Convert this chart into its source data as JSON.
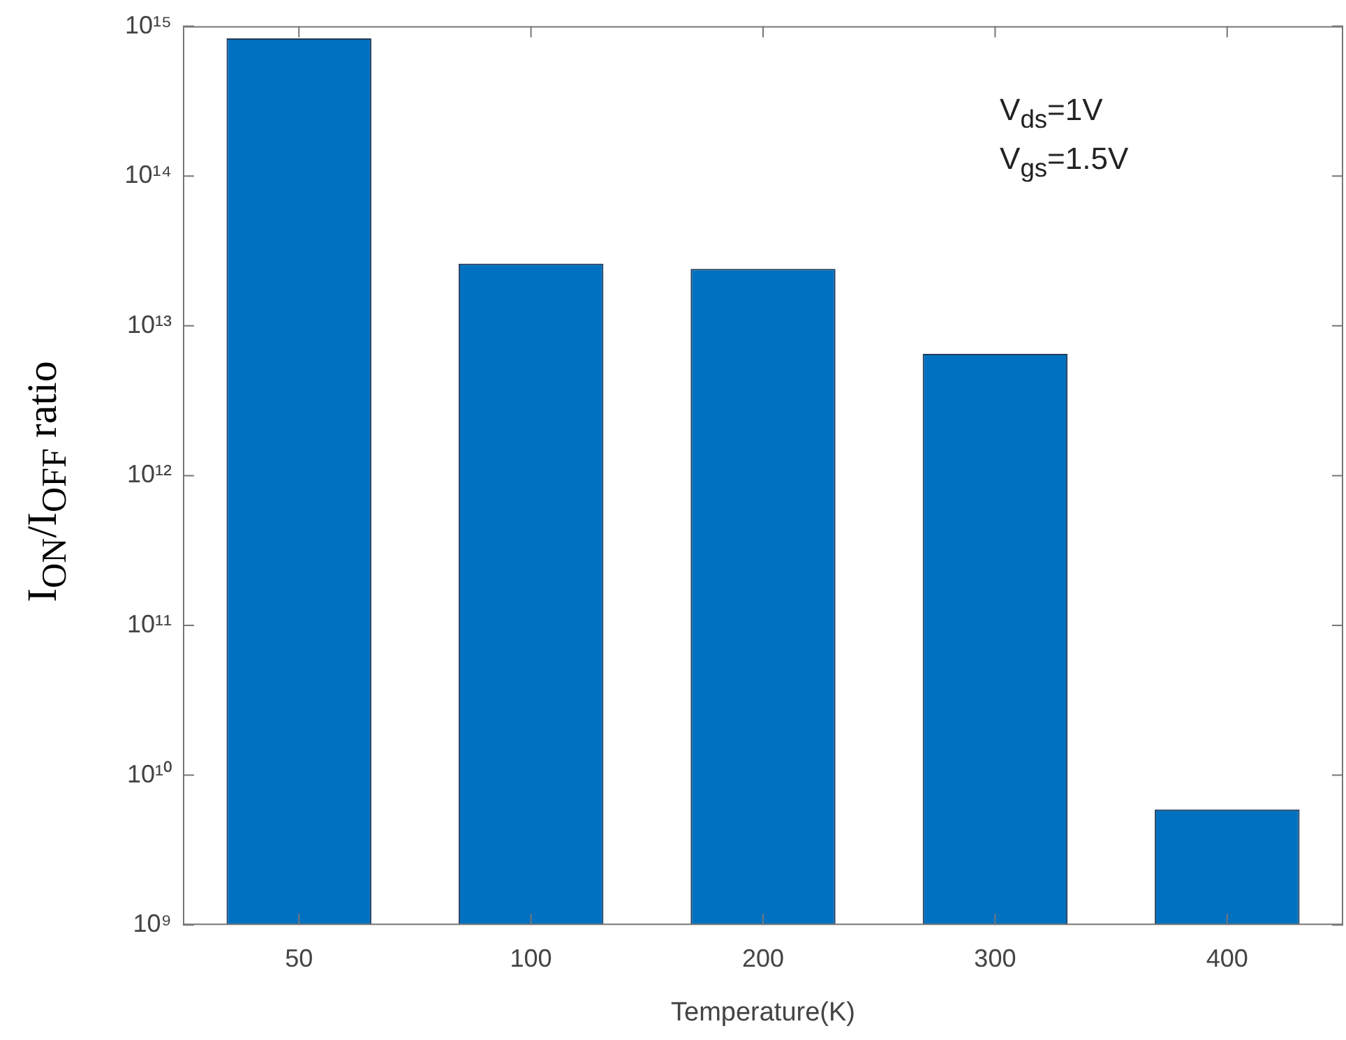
{
  "chart_data": {
    "type": "bar",
    "xlabel": "Temperature(K)",
    "ylabel": "I$_{ON}$/I$_{OFF}$ ratio",
    "categories": [
      "50",
      "100",
      "200",
      "300",
      "400"
    ],
    "values": [
      830000000000000.0,
      26000000000000.0,
      24000000000000.0,
      6500000000000.0,
      5900000000.0
    ],
    "color": "#0070c0",
    "log": true,
    "ylim": [
      1000000000.0,
      1000000000000000.0
    ],
    "yticks": [
      {
        "value": 1000000000.0,
        "label": "10⁹"
      },
      {
        "value": 10000000000.0,
        "label": "10¹⁰"
      },
      {
        "value": 100000000000.0,
        "label": "10¹¹"
      },
      {
        "value": 1000000000000.0,
        "label": "10¹²"
      },
      {
        "value": 10000000000000.0,
        "label": "10¹³"
      },
      {
        "value": 100000000000000.0,
        "label": "10¹⁴"
      },
      {
        "value": 1000000000000000.0,
        "label": "10¹⁵"
      }
    ],
    "grid": false,
    "legend": false,
    "annotations": [
      "V$_{ds}$=1V",
      "V$_{gs}$=1.5V"
    ]
  }
}
